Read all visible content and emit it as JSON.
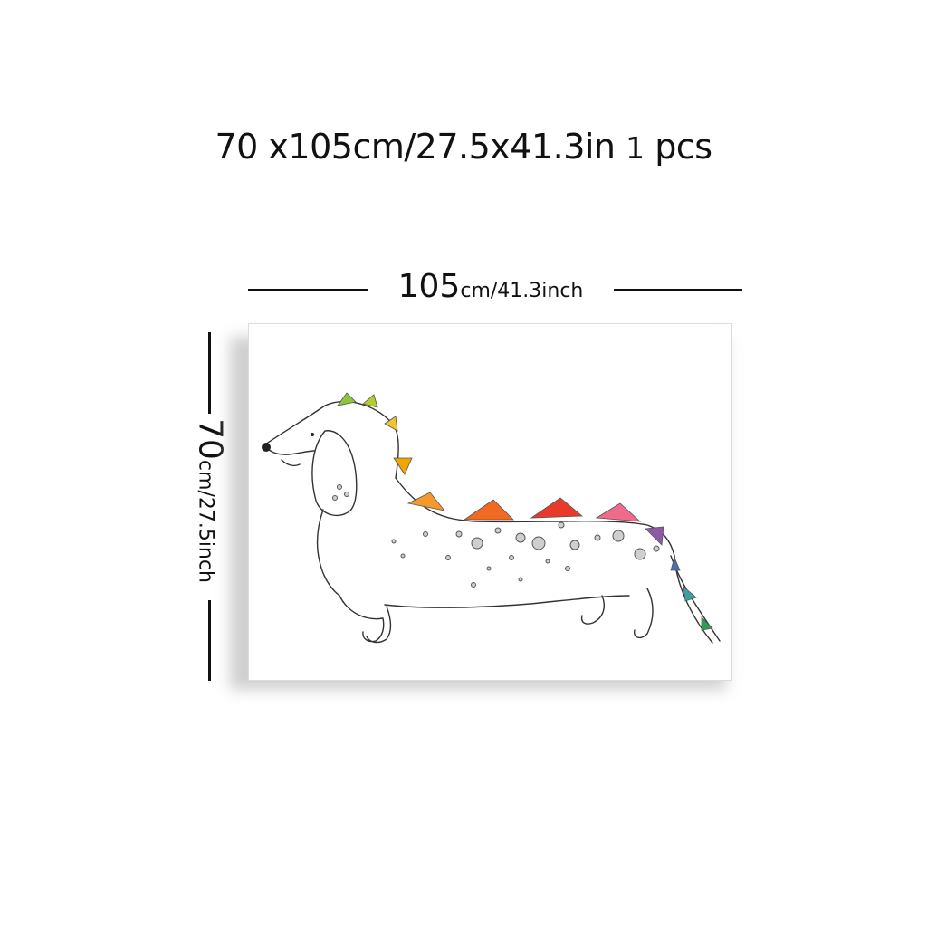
{
  "title": {
    "size": "70 x105cm/27.5x41.3in ",
    "qty_num": "1",
    "qty_unit": "pcs"
  },
  "width_dim": {
    "value": "105",
    "unit": "cm/41.3inch"
  },
  "height_dim": {
    "value": "70",
    "unit": "cm/27.5inch"
  },
  "artwork": {
    "subject": "dachshund-dinosaur-illustration",
    "spike_colors": [
      "#8cc63f",
      "#b5cc2a",
      "#f2c230",
      "#f0a500",
      "#f39a2a",
      "#f26a21",
      "#e8392b",
      "#f06a8c",
      "#8e5aa8",
      "#4a6fb0",
      "#3aa0a0",
      "#2e9d5a"
    ]
  }
}
